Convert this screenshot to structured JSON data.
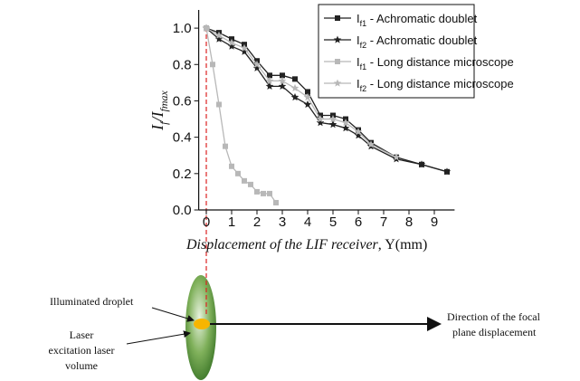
{
  "chart_data": {
    "type": "line",
    "ylabel": [
      "I",
      "f",
      "/I",
      "fmax"
    ],
    "xlabel": [
      "Displacement of the LIF receiver",
      ", Y(mm)"
    ],
    "xlim": [
      -0.3,
      9.8
    ],
    "xticks": [
      0,
      1,
      2,
      3,
      4,
      5,
      6,
      7,
      8,
      9
    ],
    "ylim": [
      0,
      1.1
    ],
    "yticks": [
      {
        "value": 0,
        "label": "0.0"
      },
      0.2,
      0.4,
      0.6,
      0.8,
      {
        "value": 1,
        "label": "1.0"
      }
    ],
    "legend": "upper right",
    "series": [
      {
        "name": [
          "I",
          "f1",
          " - Achromatic doublet"
        ],
        "color": "#222222",
        "marker": "square",
        "x": [
          0,
          0.5,
          1,
          1.5,
          2,
          2.5,
          3,
          3.5,
          4,
          4.5,
          5,
          5.5,
          6,
          6.5,
          7.5,
          8.5,
          9.5
        ],
        "values": [
          1.0,
          0.975,
          0.94,
          0.91,
          0.82,
          0.74,
          0.74,
          0.72,
          0.65,
          0.52,
          0.52,
          0.5,
          0.44,
          0.37,
          0.29,
          0.25,
          0.21
        ]
      },
      {
        "name": [
          "I",
          "f2",
          " - Achromatic doublet"
        ],
        "color": "#222222",
        "marker": "star",
        "x": [
          0,
          0.5,
          1,
          1.5,
          2,
          2.5,
          3,
          3.5,
          4,
          4.5,
          5,
          5.5,
          6,
          6.5,
          7.5,
          8.5,
          9.5
        ],
        "values": [
          1.0,
          0.94,
          0.9,
          0.87,
          0.78,
          0.68,
          0.68,
          0.62,
          0.58,
          0.48,
          0.47,
          0.45,
          0.41,
          0.35,
          0.28,
          0.25,
          0.21
        ]
      },
      {
        "name": [
          "I",
          "f1",
          " - Long distance microscope"
        ],
        "color": "#b8b8b8",
        "marker": "square",
        "x": [
          0,
          0.25,
          0.5,
          0.75,
          1,
          1.25,
          1.5,
          1.75,
          2,
          2.25,
          2.5,
          2.75
        ],
        "values": [
          1.0,
          0.8,
          0.58,
          0.35,
          0.24,
          0.2,
          0.16,
          0.14,
          0.1,
          0.09,
          0.09,
          0.04
        ]
      },
      {
        "name": [
          "I",
          "f2",
          " - Long distance microscope"
        ],
        "color": "#b8b8b8",
        "marker": "star",
        "x": [
          0,
          0.5,
          1,
          1.5,
          2,
          2.5,
          3,
          3.5,
          4,
          4.5,
          5,
          5.5,
          6,
          6.5,
          7.5
        ],
        "values": [
          1.0,
          0.96,
          0.92,
          0.89,
          0.8,
          0.71,
          0.71,
          0.67,
          0.62,
          0.5,
          0.5,
          0.48,
          0.43,
          0.36,
          0.29
        ]
      }
    ]
  },
  "diagram": {
    "droplet_label": "Illuminated droplet",
    "volume_label": [
      "Laser",
      "excitation laser",
      "volume"
    ],
    "direction_label": [
      "Direction of the focal",
      "plane displacement"
    ]
  }
}
